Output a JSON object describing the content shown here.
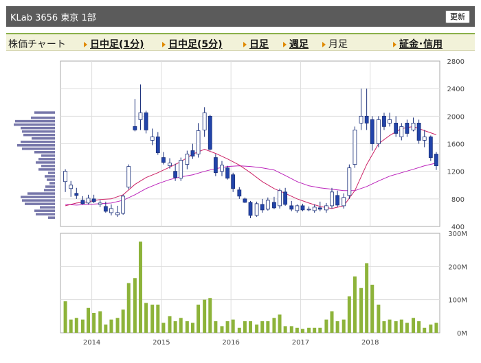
{
  "header": {
    "title": "KLab  3656  東京 1部",
    "refresh_label": "更新"
  },
  "tabs": [
    {
      "label": "株価チャート",
      "link": false,
      "arrow": false
    },
    {
      "label": "日中足(1分)",
      "link": true,
      "arrow": true
    },
    {
      "label": "日中足(5分)",
      "link": true,
      "arrow": true
    },
    {
      "label": "日足",
      "link": true,
      "arrow": true
    },
    {
      "label": "週足",
      "link": true,
      "arrow": true
    },
    {
      "label": "月足",
      "link": false,
      "arrow": true
    },
    {
      "label": "証金･信用",
      "link": true,
      "arrow": true
    }
  ],
  "chart_data": [
    {
      "type": "candlestick",
      "ylim": [
        400,
        2800
      ],
      "yticks": [
        "400",
        "800",
        "1200",
        "1600",
        "2000",
        "2400",
        "2800"
      ],
      "colors": {
        "up": "#ffffff",
        "down": "#2244aa",
        "ma_short": "#cc2266",
        "ma_long": "#bb22bb"
      },
      "candles": [
        [
          2013.62,
          1050,
          1230,
          900,
          1200
        ],
        [
          2013.7,
          950,
          1060,
          830,
          1000
        ],
        [
          2013.78,
          880,
          960,
          800,
          850
        ],
        [
          2013.87,
          780,
          840,
          720,
          730
        ],
        [
          2013.95,
          740,
          860,
          720,
          810
        ],
        [
          2014.03,
          800,
          860,
          740,
          760
        ],
        [
          2014.12,
          720,
          780,
          680,
          740
        ],
        [
          2014.2,
          690,
          760,
          600,
          620
        ],
        [
          2014.28,
          600,
          720,
          560,
          660
        ],
        [
          2014.37,
          570,
          700,
          540,
          600
        ],
        [
          2014.45,
          590,
          860,
          570,
          840
        ],
        [
          2014.53,
          970,
          1300,
          940,
          1270
        ],
        [
          2014.62,
          1850,
          2250,
          1780,
          1800
        ],
        [
          2014.7,
          1950,
          2460,
          1800,
          2050
        ],
        [
          2014.78,
          2050,
          2080,
          1750,
          1800
        ],
        [
          2014.87,
          1650,
          1820,
          1580,
          1700
        ],
        [
          2014.95,
          1700,
          1770,
          1440,
          1470
        ],
        [
          2015.03,
          1400,
          1480,
          1300,
          1330
        ],
        [
          2015.12,
          1280,
          1390,
          1240,
          1320
        ],
        [
          2015.2,
          1200,
          1310,
          1060,
          1110
        ],
        [
          2015.28,
          1100,
          1400,
          1060,
          1360
        ],
        [
          2015.37,
          1300,
          1500,
          1230,
          1450
        ],
        [
          2015.45,
          1500,
          1600,
          1380,
          1420
        ],
        [
          2015.53,
          1450,
          1900,
          1400,
          1790
        ],
        [
          2015.62,
          1800,
          2130,
          1700,
          2050
        ],
        [
          2015.7,
          2000,
          2020,
          1500,
          1520
        ],
        [
          2015.78,
          1400,
          1450,
          1130,
          1180
        ],
        [
          2015.87,
          1200,
          1350,
          1130,
          1290
        ],
        [
          2015.95,
          1250,
          1280,
          1080,
          1100
        ],
        [
          2016.03,
          1150,
          1180,
          900,
          950
        ],
        [
          2016.12,
          930,
          970,
          800,
          840
        ],
        [
          2016.2,
          800,
          820,
          740,
          750
        ],
        [
          2016.28,
          750,
          770,
          520,
          560
        ],
        [
          2016.37,
          560,
          760,
          540,
          730
        ],
        [
          2016.45,
          720,
          800,
          600,
          640
        ],
        [
          2016.53,
          650,
          820,
          630,
          780
        ],
        [
          2016.62,
          750,
          830,
          650,
          670
        ],
        [
          2016.7,
          700,
          950,
          660,
          920
        ],
        [
          2016.78,
          900,
          960,
          700,
          720
        ],
        [
          2016.87,
          700,
          770,
          620,
          650
        ],
        [
          2016.95,
          630,
          720,
          600,
          700
        ],
        [
          2017.03,
          700,
          730,
          620,
          640
        ],
        [
          2017.12,
          640,
          690,
          620,
          650
        ],
        [
          2017.2,
          630,
          720,
          600,
          680
        ],
        [
          2017.28,
          670,
          760,
          620,
          650
        ],
        [
          2017.37,
          640,
          740,
          600,
          700
        ],
        [
          2017.45,
          700,
          960,
          660,
          900
        ],
        [
          2017.53,
          850,
          920,
          680,
          710
        ],
        [
          2017.62,
          700,
          880,
          660,
          820
        ],
        [
          2017.7,
          850,
          1300,
          800,
          1250
        ],
        [
          2017.78,
          1300,
          1850,
          1250,
          1800
        ],
        [
          2017.87,
          1900,
          2400,
          1800,
          2000
        ],
        [
          2017.95,
          2000,
          2400,
          1800,
          1900
        ],
        [
          2018.03,
          1950,
          2000,
          1500,
          1600
        ],
        [
          2018.12,
          1600,
          2000,
          1550,
          1950
        ],
        [
          2018.2,
          2000,
          2050,
          1800,
          1850
        ],
        [
          2018.28,
          1900,
          2050,
          1850,
          1950
        ],
        [
          2018.37,
          1900,
          2000,
          1700,
          1750
        ],
        [
          2018.45,
          1700,
          1900,
          1650,
          1850
        ],
        [
          2018.53,
          1900,
          1950,
          1700,
          1750
        ],
        [
          2018.62,
          1800,
          1980,
          1780,
          1900
        ],
        [
          2018.7,
          1900,
          1950,
          1600,
          1650
        ],
        [
          2018.78,
          1650,
          1800,
          1550,
          1700
        ],
        [
          2018.87,
          1700,
          1720,
          1350,
          1400
        ],
        [
          2018.95,
          1450,
          1480,
          1220,
          1280
        ]
      ],
      "ma_short": [
        [
          2013.62,
          700
        ],
        [
          2013.78,
          740
        ],
        [
          2013.95,
          760
        ],
        [
          2014.12,
          790
        ],
        [
          2014.28,
          800
        ],
        [
          2014.45,
          860
        ],
        [
          2014.62,
          1010
        ],
        [
          2014.78,
          1110
        ],
        [
          2014.95,
          1180
        ],
        [
          2015.12,
          1260
        ],
        [
          2015.28,
          1340
        ],
        [
          2015.45,
          1450
        ],
        [
          2015.62,
          1520
        ],
        [
          2015.78,
          1460
        ],
        [
          2015.95,
          1380
        ],
        [
          2016.12,
          1290
        ],
        [
          2016.28,
          1180
        ],
        [
          2016.45,
          1050
        ],
        [
          2016.62,
          950
        ],
        [
          2016.78,
          880
        ],
        [
          2016.95,
          800
        ],
        [
          2017.12,
          740
        ],
        [
          2017.28,
          690
        ],
        [
          2017.45,
          660
        ],
        [
          2017.62,
          700
        ],
        [
          2017.78,
          920
        ],
        [
          2017.95,
          1300
        ],
        [
          2018.12,
          1600
        ],
        [
          2018.28,
          1720
        ],
        [
          2018.45,
          1820
        ],
        [
          2018.62,
          1850
        ],
        [
          2018.78,
          1790
        ],
        [
          2018.95,
          1730
        ]
      ],
      "ma_long": [
        [
          2013.62,
          720
        ],
        [
          2013.78,
          710
        ],
        [
          2013.95,
          720
        ],
        [
          2014.12,
          730
        ],
        [
          2014.28,
          740
        ],
        [
          2014.45,
          780
        ],
        [
          2014.62,
          860
        ],
        [
          2014.78,
          950
        ],
        [
          2014.95,
          1020
        ],
        [
          2015.12,
          1080
        ],
        [
          2015.28,
          1120
        ],
        [
          2015.45,
          1150
        ],
        [
          2015.62,
          1200
        ],
        [
          2015.78,
          1240
        ],
        [
          2015.95,
          1270
        ],
        [
          2016.12,
          1280
        ],
        [
          2016.28,
          1270
        ],
        [
          2016.45,
          1250
        ],
        [
          2016.62,
          1220
        ],
        [
          2016.78,
          1140
        ],
        [
          2016.95,
          1050
        ],
        [
          2017.12,
          990
        ],
        [
          2017.28,
          960
        ],
        [
          2017.45,
          940
        ],
        [
          2017.62,
          920
        ],
        [
          2017.78,
          920
        ],
        [
          2017.95,
          980
        ],
        [
          2018.12,
          1060
        ],
        [
          2018.28,
          1130
        ],
        [
          2018.45,
          1180
        ],
        [
          2018.62,
          1230
        ],
        [
          2018.78,
          1280
        ],
        [
          2018.95,
          1320
        ]
      ],
      "volume_profile": [
        [
          2050,
          30
        ],
        [
          1975,
          35
        ],
        [
          1925,
          58
        ],
        [
          1875,
          60
        ],
        [
          1825,
          50
        ],
        [
          1775,
          48
        ],
        [
          1725,
          46
        ],
        [
          1675,
          34
        ],
        [
          1625,
          50
        ],
        [
          1575,
          55
        ],
        [
          1525,
          48
        ],
        [
          1475,
          30
        ],
        [
          1425,
          20
        ],
        [
          1375,
          24
        ],
        [
          1325,
          28
        ],
        [
          1275,
          20
        ],
        [
          1225,
          24
        ],
        [
          1175,
          10
        ],
        [
          1125,
          15
        ],
        [
          1075,
          12
        ],
        [
          1025,
          8
        ],
        [
          975,
          14
        ],
        [
          925,
          16
        ],
        [
          875,
          40
        ],
        [
          825,
          50
        ],
        [
          775,
          48
        ],
        [
          725,
          44
        ],
        [
          675,
          22
        ],
        [
          625,
          30
        ],
        [
          575,
          28
        ],
        [
          525,
          10
        ]
      ]
    },
    {
      "type": "bar",
      "ylim": [
        0,
        300
      ],
      "yticks": [
        "0M",
        "100M",
        "200M",
        "300M"
      ],
      "x_ticks": [
        "2014",
        "2015",
        "2016",
        "2017",
        "2018"
      ],
      "colors": {
        "bar": "#8db33a"
      },
      "volumes": [
        [
          2013.62,
          95
        ],
        [
          2013.7,
          40
        ],
        [
          2013.78,
          45
        ],
        [
          2013.87,
          40
        ],
        [
          2013.95,
          75
        ],
        [
          2014.03,
          60
        ],
        [
          2014.12,
          65
        ],
        [
          2014.2,
          25
        ],
        [
          2014.28,
          40
        ],
        [
          2014.37,
          45
        ],
        [
          2014.45,
          70
        ],
        [
          2014.53,
          150
        ],
        [
          2014.62,
          165
        ],
        [
          2014.7,
          275
        ],
        [
          2014.78,
          90
        ],
        [
          2014.87,
          85
        ],
        [
          2014.95,
          85
        ],
        [
          2015.03,
          30
        ],
        [
          2015.12,
          50
        ],
        [
          2015.2,
          35
        ],
        [
          2015.28,
          45
        ],
        [
          2015.37,
          35
        ],
        [
          2015.45,
          30
        ],
        [
          2015.53,
          85
        ],
        [
          2015.62,
          100
        ],
        [
          2015.7,
          105
        ],
        [
          2015.78,
          35
        ],
        [
          2015.87,
          20
        ],
        [
          2015.95,
          35
        ],
        [
          2016.03,
          40
        ],
        [
          2016.12,
          15
        ],
        [
          2016.2,
          35
        ],
        [
          2016.28,
          35
        ],
        [
          2016.37,
          25
        ],
        [
          2016.45,
          35
        ],
        [
          2016.53,
          35
        ],
        [
          2016.62,
          45
        ],
        [
          2016.7,
          55
        ],
        [
          2016.78,
          20
        ],
        [
          2016.87,
          20
        ],
        [
          2016.95,
          15
        ],
        [
          2017.03,
          12
        ],
        [
          2017.12,
          15
        ],
        [
          2017.2,
          15
        ],
        [
          2017.28,
          15
        ],
        [
          2017.37,
          40
        ],
        [
          2017.45,
          65
        ],
        [
          2017.53,
          35
        ],
        [
          2017.62,
          40
        ],
        [
          2017.7,
          110
        ],
        [
          2017.78,
          170
        ],
        [
          2017.87,
          135
        ],
        [
          2017.95,
          210
        ],
        [
          2018.03,
          145
        ],
        [
          2018.12,
          85
        ],
        [
          2018.2,
          35
        ],
        [
          2018.28,
          40
        ],
        [
          2018.37,
          35
        ],
        [
          2018.45,
          40
        ],
        [
          2018.53,
          30
        ],
        [
          2018.62,
          45
        ],
        [
          2018.7,
          35
        ],
        [
          2018.78,
          15
        ],
        [
          2018.87,
          25
        ],
        [
          2018.95,
          30
        ]
      ]
    }
  ]
}
